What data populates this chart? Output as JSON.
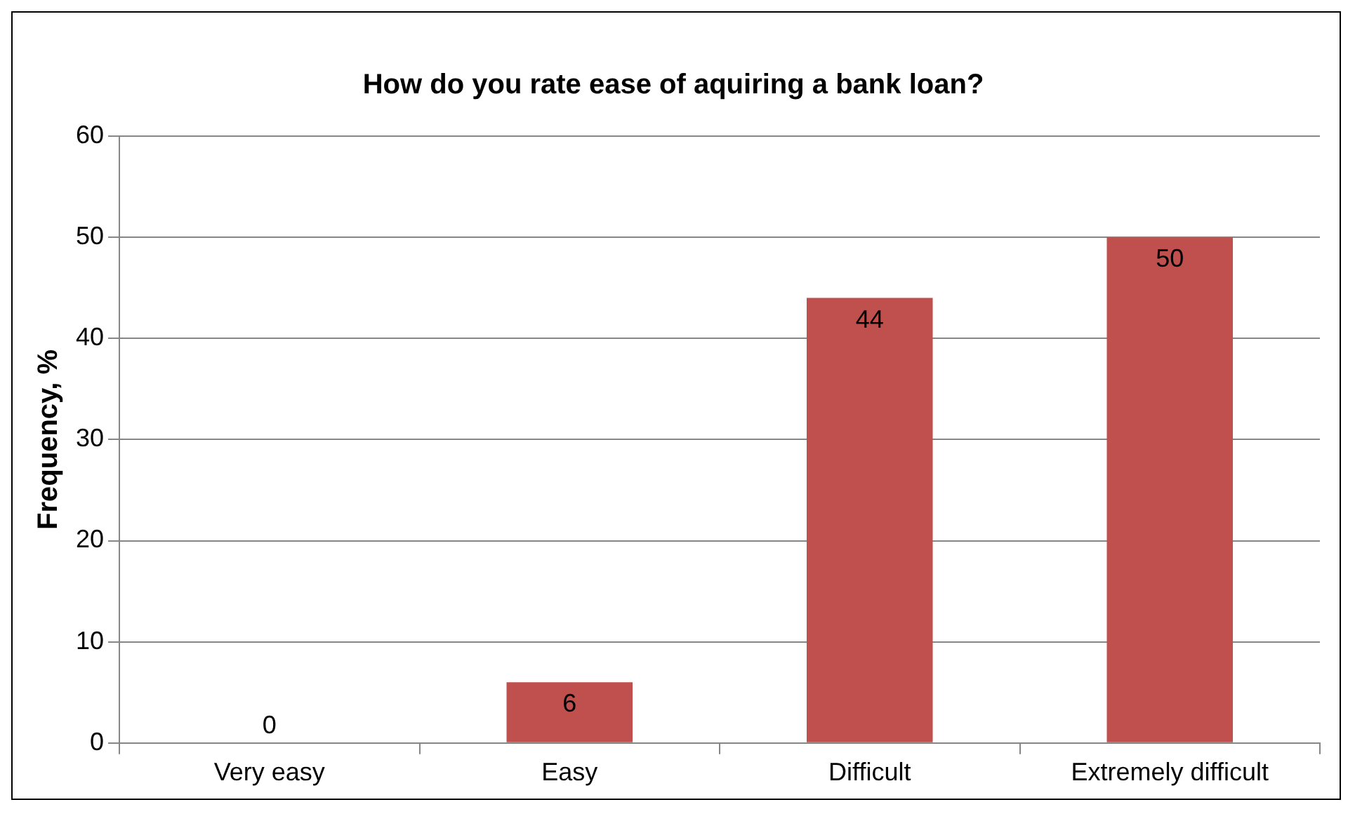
{
  "chart_data": {
    "type": "bar",
    "title": "How do you rate ease of aquiring a bank loan?",
    "ylabel": "Frequency, %",
    "categories": [
      "Very easy",
      "Easy",
      "Difficult",
      "Extremely difficult"
    ],
    "values": [
      0,
      6,
      44,
      50
    ],
    "color": "#c0504d",
    "ylim": [
      0,
      60
    ],
    "yticks": [
      0,
      10,
      20,
      30,
      40,
      50,
      60
    ],
    "grid": "y",
    "data_labels": true,
    "legend": false
  }
}
